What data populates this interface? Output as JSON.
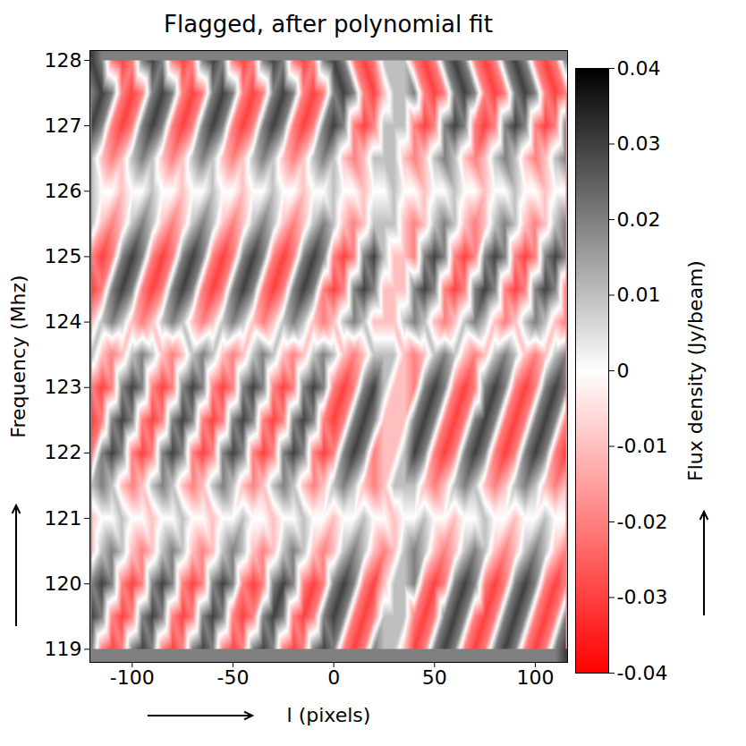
{
  "chart_data": {
    "type": "heatmap",
    "title": "Flagged, after polynomial fit",
    "x_label": "l (pixels)",
    "y_label": "Frequency (Mhz)",
    "xlim": [
      -121,
      116
    ],
    "ylim": [
      118.8,
      128.15
    ],
    "xticks": [
      -100,
      -50,
      0,
      50,
      100
    ],
    "yticks": [
      119,
      120,
      121,
      122,
      123,
      124,
      125,
      126,
      127,
      128
    ],
    "x": [
      -120,
      -115,
      -110,
      -105,
      -100,
      -95,
      -90,
      -85,
      -80,
      -75,
      -70,
      -65,
      -60,
      -55,
      -50,
      -45,
      -40,
      -35,
      -30,
      -25,
      -20,
      -15,
      -10,
      -5,
      0,
      5,
      10,
      15,
      20,
      25,
      30,
      35,
      40,
      45,
      50,
      55,
      60,
      65,
      70,
      75,
      80,
      85,
      90,
      95,
      100,
      105,
      110,
      115
    ],
    "y": [
      119,
      119.5,
      120,
      120.5,
      121,
      121.5,
      122,
      122.5,
      123,
      123.5,
      124,
      124.5,
      125,
      125.5,
      126,
      126.5,
      127,
      127.5,
      128
    ],
    "cells": [
      [
        0.02,
        -0.02,
        -0.03,
        -0.02,
        0.02,
        0.03,
        0.02,
        -0.02,
        -0.03,
        -0.02,
        0.02,
        0.03,
        0.02,
        -0.02,
        -0.03,
        -0.02,
        0.02,
        0.03,
        0.02,
        -0.02,
        -0.03,
        -0.02,
        0.02,
        0.03,
        0.02,
        -0.02,
        -0.03,
        -0.02,
        0.02,
        0.01,
        0.01,
        -0.01,
        -0.03,
        -0.02,
        0.02,
        0.03,
        0.02,
        -0.02,
        -0.03,
        -0.02,
        0.02,
        0.03,
        0.02,
        -0.02,
        -0.03,
        -0.02,
        0.02,
        0.03
      ],
      [
        0.03,
        0.02,
        -0.02,
        -0.03,
        -0.02,
        0.02,
        0.03,
        0.02,
        -0.02,
        -0.03,
        -0.02,
        0.02,
        0.03,
        0.02,
        -0.02,
        -0.03,
        -0.02,
        0.02,
        0.03,
        0.02,
        -0.02,
        -0.03,
        -0.02,
        0.02,
        0.03,
        0.02,
        -0.02,
        -0.03,
        -0.02,
        0.01,
        0.01,
        0.01,
        -0.02,
        -0.03,
        -0.02,
        0.02,
        0.03,
        0.02,
        -0.02,
        -0.03,
        -0.02,
        0.02,
        0.03,
        0.02,
        -0.02,
        -0.03,
        -0.02,
        0.02
      ],
      [
        0.02,
        0.03,
        0.02,
        -0.02,
        -0.03,
        -0.02,
        0.02,
        0.03,
        0.02,
        -0.02,
        -0.03,
        -0.02,
        0.02,
        0.03,
        0.02,
        -0.02,
        -0.03,
        -0.02,
        0.02,
        0.03,
        0.02,
        -0.02,
        -0.03,
        -0.02,
        0.02,
        0.03,
        0.02,
        -0.02,
        -0.03,
        -0.01,
        0.01,
        0.01,
        0.02,
        -0.02,
        -0.03,
        -0.02,
        0.02,
        0.03,
        0.02,
        -0.02,
        -0.03,
        -0.02,
        0.02,
        0.03,
        0.02,
        -0.02,
        -0.03,
        -0.02
      ],
      [
        -0.01,
        0.01,
        0.02,
        0.01,
        -0.01,
        -0.02,
        -0.01,
        0.01,
        0.02,
        0.01,
        -0.01,
        -0.02,
        -0.01,
        0.01,
        0.02,
        0.01,
        -0.01,
        -0.02,
        -0.01,
        0.01,
        0.02,
        0.01,
        -0.01,
        -0.02,
        -0.01,
        0.01,
        0.02,
        0.01,
        -0.01,
        -0.02,
        -0.01,
        0.01,
        0.02,
        0.01,
        -0.01,
        -0.02,
        -0.01,
        0.01,
        0.02,
        0.01,
        -0.01,
        -0.02,
        -0.01,
        0.01,
        0.02,
        0.01,
        -0.01,
        -0.02
      ],
      [
        -0.01,
        0,
        0,
        0.01,
        0,
        0,
        -0.01,
        0,
        0,
        0.01,
        0,
        0,
        -0.01,
        0,
        0,
        0.01,
        0,
        0,
        -0.01,
        0,
        0,
        0.01,
        0,
        0,
        -0.01,
        0,
        0,
        0.01,
        0,
        0,
        -0.01,
        0,
        0,
        0.01,
        0,
        0,
        -0.01,
        0,
        0,
        0.01,
        0,
        0,
        -0.01,
        0,
        0,
        0.01,
        0,
        0
      ],
      [
        0.01,
        0.02,
        0.01,
        -0.01,
        -0.02,
        -0.01,
        0.01,
        0.02,
        0.01,
        -0.01,
        -0.02,
        -0.01,
        0.01,
        0.02,
        0.01,
        -0.01,
        -0.02,
        -0.01,
        0.01,
        0.02,
        0.01,
        -0.01,
        -0.02,
        -0.01,
        0.01,
        0.02,
        0.01,
        -0.01,
        -0.02,
        -0.01,
        0.01,
        0.01,
        0.01,
        -0.01,
        -0.02,
        -0.01,
        0.01,
        0.02,
        0.01,
        -0.01,
        -0.02,
        -0.01,
        0.01,
        0.02,
        0.01,
        -0.01,
        -0.02,
        -0.01
      ],
      [
        -0.02,
        0.02,
        0.03,
        0.02,
        -0.02,
        -0.03,
        -0.02,
        0.02,
        0.03,
        0.02,
        -0.02,
        -0.03,
        -0.02,
        0.02,
        0.03,
        0.02,
        -0.02,
        -0.03,
        -0.02,
        0.02,
        0.03,
        0.02,
        -0.02,
        -0.03,
        -0.02,
        0.02,
        0.03,
        0.02,
        -0.02,
        -0.01,
        -0.01,
        0.01,
        0.03,
        0.02,
        -0.02,
        -0.03,
        -0.02,
        0.02,
        0.03,
        0.02,
        -0.02,
        -0.03,
        -0.02,
        0.02,
        0.03,
        0.02,
        -0.02,
        -0.03
      ],
      [
        -0.03,
        -0.02,
        0.02,
        0.03,
        0.02,
        -0.02,
        -0.03,
        -0.02,
        0.02,
        0.03,
        0.02,
        -0.02,
        -0.03,
        -0.02,
        0.02,
        0.03,
        0.02,
        -0.02,
        -0.03,
        -0.02,
        0.02,
        0.03,
        0.02,
        -0.02,
        -0.03,
        -0.02,
        0.02,
        0.03,
        0.02,
        -0.01,
        -0.01,
        -0.01,
        0.02,
        0.03,
        0.02,
        -0.02,
        -0.03,
        -0.02,
        0.02,
        0.03,
        0.02,
        -0.02,
        -0.03,
        -0.02,
        0.02,
        0.03,
        0.02,
        -0.02
      ],
      [
        -0.02,
        -0.03,
        -0.02,
        0.02,
        0.03,
        0.02,
        -0.02,
        -0.03,
        -0.02,
        0.02,
        0.03,
        0.02,
        -0.02,
        -0.03,
        -0.02,
        0.02,
        0.03,
        0.02,
        -0.02,
        -0.03,
        -0.02,
        0.02,
        0.03,
        0.02,
        -0.02,
        -0.03,
        -0.02,
        0.02,
        0.03,
        0.01,
        -0.01,
        -0.01,
        -0.02,
        0.02,
        0.03,
        0.02,
        -0.02,
        -0.03,
        -0.02,
        0.02,
        0.03,
        0.02,
        -0.02,
        -0.03,
        -0.02,
        0.02,
        0.03,
        0.02
      ],
      [
        0.01,
        -0.01,
        -0.02,
        -0.01,
        0.01,
        0.02,
        0.01,
        -0.01,
        -0.02,
        -0.01,
        0.01,
        0.02,
        0.01,
        -0.01,
        -0.02,
        -0.01,
        0.01,
        0.02,
        0.01,
        -0.01,
        -0.02,
        -0.01,
        0.01,
        0.02,
        0.01,
        -0.01,
        -0.02,
        -0.01,
        0.01,
        0.01,
        0.01,
        -0.01,
        -0.02,
        -0.01,
        0.01,
        0.02,
        0.01,
        -0.01,
        -0.02,
        -0.01,
        0.01,
        0.02,
        0.01,
        -0.01,
        -0.02,
        -0.01,
        0.01,
        0.02
      ],
      [
        -0.01,
        0.01,
        0.02,
        0.01,
        -0.01,
        -0.02,
        -0.01,
        0.01,
        0.02,
        0.01,
        -0.01,
        -0.02,
        -0.01,
        0.01,
        0.02,
        0.01,
        -0.01,
        -0.02,
        -0.01,
        0.01,
        0.02,
        0.01,
        -0.01,
        -0.02,
        -0.01,
        0.01,
        0.02,
        0.01,
        -0.01,
        -0.01,
        -0.01,
        0.01,
        0.02,
        0.01,
        -0.01,
        -0.02,
        -0.01,
        0.01,
        0.02,
        0.01,
        -0.01,
        -0.02,
        -0.01,
        0.01,
        0.02,
        0.01,
        -0.01,
        -0.02
      ],
      [
        -0.03,
        -0.02,
        0.02,
        0.03,
        0.02,
        -0.02,
        -0.03,
        -0.02,
        0.02,
        0.03,
        0.02,
        -0.02,
        -0.03,
        -0.02,
        0.02,
        0.03,
        0.02,
        -0.02,
        -0.03,
        -0.02,
        0.02,
        0.03,
        0.02,
        -0.02,
        -0.03,
        -0.02,
        0.02,
        0.03,
        0.02,
        -0.01,
        -0.01,
        -0.01,
        0.02,
        0.03,
        0.02,
        -0.02,
        -0.03,
        -0.02,
        0.02,
        0.03,
        0.02,
        -0.02,
        -0.03,
        -0.02,
        0.02,
        0.03,
        0.02,
        -0.02
      ],
      [
        -0.02,
        -0.03,
        -0.02,
        0.02,
        0.03,
        0.02,
        -0.02,
        -0.03,
        -0.02,
        0.02,
        0.03,
        0.02,
        -0.02,
        -0.03,
        -0.02,
        0.02,
        0.03,
        0.02,
        -0.02,
        -0.03,
        -0.02,
        0.02,
        0.03,
        0.02,
        -0.02,
        -0.03,
        -0.02,
        0.02,
        0.03,
        0.01,
        -0.01,
        -0.01,
        -0.02,
        0.02,
        0.03,
        0.02,
        -0.02,
        -0.03,
        -0.02,
        0.02,
        0.03,
        0.02,
        -0.02,
        -0.03,
        -0.02,
        0.02,
        0.03,
        0.02
      ],
      [
        0.01,
        -0.01,
        -0.02,
        -0.01,
        0.01,
        0.02,
        0.01,
        -0.01,
        -0.02,
        -0.01,
        0.01,
        0.02,
        0.01,
        -0.01,
        -0.02,
        -0.01,
        0.01,
        0.02,
        0.01,
        -0.01,
        -0.02,
        -0.01,
        0.01,
        0.02,
        0.01,
        -0.01,
        -0.02,
        -0.01,
        0.01,
        0.01,
        0.01,
        -0.01,
        -0.02,
        -0.01,
        0.01,
        0.02,
        0.01,
        -0.01,
        -0.02,
        -0.01,
        0.01,
        0.02,
        0.01,
        -0.01,
        -0.02,
        -0.01,
        0.01,
        0.02
      ],
      [
        0.01,
        0,
        0,
        -0.01,
        0,
        0,
        0.01,
        0,
        0,
        -0.01,
        0,
        0,
        0.01,
        0,
        0,
        -0.01,
        0,
        0,
        0.01,
        0,
        0,
        -0.01,
        0,
        0,
        0.01,
        0,
        0,
        -0.01,
        0,
        0,
        0.01,
        0,
        0,
        -0.01,
        0,
        0,
        0.01,
        0,
        0,
        -0.01,
        0,
        0,
        0.01,
        0,
        0,
        -0.01,
        0,
        0
      ],
      [
        0.01,
        -0.01,
        -0.02,
        -0.01,
        0.01,
        0.02,
        0.01,
        -0.01,
        -0.02,
        -0.01,
        0.01,
        0.02,
        0.01,
        -0.01,
        -0.02,
        -0.01,
        0.01,
        0.02,
        0.01,
        -0.01,
        -0.02,
        -0.01,
        0.01,
        0.02,
        0.01,
        -0.01,
        -0.02,
        -0.01,
        0.01,
        0.01,
        0.01,
        -0.01,
        -0.02,
        -0.01,
        0.01,
        0.02,
        0.01,
        -0.01,
        -0.02,
        -0.01,
        0.01,
        0.02,
        0.01,
        -0.01,
        -0.02,
        -0.01,
        0.01,
        0.02
      ],
      [
        0.03,
        0.02,
        -0.02,
        -0.03,
        -0.02,
        0.02,
        0.03,
        0.02,
        -0.02,
        -0.03,
        -0.02,
        0.02,
        0.03,
        0.02,
        -0.02,
        -0.03,
        -0.02,
        0.02,
        0.03,
        0.02,
        -0.02,
        -0.03,
        -0.02,
        0.02,
        0.03,
        0.02,
        -0.02,
        -0.03,
        -0.02,
        0.01,
        0.01,
        0.01,
        -0.02,
        -0.03,
        -0.02,
        0.02,
        0.03,
        0.02,
        -0.02,
        -0.03,
        -0.02,
        0.02,
        0.03,
        0.02,
        -0.02,
        -0.03,
        -0.02,
        0.02
      ],
      [
        0.02,
        0.03,
        0.02,
        -0.02,
        -0.03,
        -0.02,
        0.02,
        0.03,
        0.02,
        -0.02,
        -0.03,
        -0.02,
        0.02,
        0.03,
        0.02,
        -0.02,
        -0.03,
        -0.02,
        0.02,
        0.03,
        0.02,
        -0.02,
        -0.03,
        -0.02,
        0.02,
        0.03,
        0.02,
        -0.02,
        -0.03,
        -0.01,
        0.01,
        0.01,
        0.02,
        -0.02,
        -0.03,
        -0.02,
        0.02,
        0.03,
        0.02,
        -0.02,
        -0.03,
        -0.02,
        0.02,
        0.03,
        0.02,
        -0.02,
        -0.03,
        -0.02
      ],
      [
        0.03,
        0.02,
        -0.02,
        -0.03,
        -0.02,
        0.02,
        0.03,
        0.02,
        -0.02,
        -0.03,
        -0.02,
        0.02,
        0.03,
        0.02,
        -0.02,
        -0.03,
        -0.02,
        0.02,
        0.03,
        0.02,
        -0.02,
        -0.03,
        -0.02,
        0.02,
        0.03,
        0.02,
        -0.02,
        -0.03,
        -0.02,
        0.01,
        0.01,
        0.01,
        -0.02,
        -0.03,
        -0.02,
        0.02,
        0.03,
        0.02,
        -0.02,
        -0.03,
        -0.02,
        0.02,
        0.03,
        0.02,
        -0.02,
        -0.03,
        -0.02,
        0.02
      ]
    ],
    "colorbar": {
      "label": "Flux density (Jy/beam)",
      "range": [
        -0.04,
        0.04
      ],
      "ticks": [
        -0.04,
        -0.03,
        -0.02,
        -0.01,
        0,
        0.01,
        0.02,
        0.03,
        0.04
      ],
      "colors": [
        "#ff0000",
        "#ffffff",
        "#000000"
      ]
    }
  }
}
